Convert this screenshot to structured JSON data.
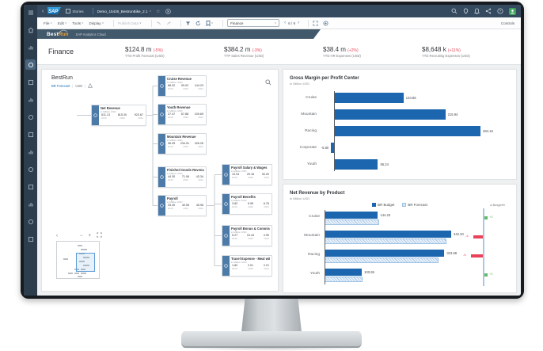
{
  "shell": {
    "brand": "SAP",
    "stories_label": "Stories",
    "doc_title": "Demo_15426_BestrunBike_2.1",
    "right_icons": [
      "search-icon",
      "location-icon",
      "notifications-icon",
      "share-icon",
      "help-icon",
      "account-avatar"
    ]
  },
  "sidebar": {
    "icons": [
      "menu",
      "home",
      "files",
      "story-active",
      "insights",
      "recent",
      "cloud",
      "users",
      "charts",
      "location",
      "link",
      "apps",
      "settings",
      "more"
    ]
  },
  "toolbar": {
    "menus": [
      "File",
      "Edit",
      "Tools",
      "Display"
    ],
    "publish_label": "Publish Data",
    "icon_names": [
      "undo",
      "redo",
      "filter",
      "refresh",
      "bookmark"
    ],
    "page_selector": "Finance",
    "page_nav": "6 / 9",
    "trailing_icon_names": [
      "fullscreen",
      "reset"
    ],
    "controls_label": "Controls"
  },
  "banner": {
    "brand_best": "Best",
    "brand_run": "Run",
    "product": "SAP Analytics Cloud"
  },
  "kpi": {
    "page_title": "Finance",
    "change_color": "#e8435a",
    "items": [
      {
        "value": "$124.8 m",
        "change": "(-5%)",
        "label": "YTD Profit Forecast (USD)"
      },
      {
        "value": "$384.2 m",
        "change": "(-3%)",
        "label": "YTP Sales Revenue (USD)"
      },
      {
        "value": "$38.4 m",
        "change": "(+2%)",
        "label": "YTD HR Expenses (USD)"
      },
      {
        "value": "$8,648 k",
        "change": "(+11%)",
        "label": "YTD Recruiting Expenses (USD)"
      }
    ]
  },
  "tree": {
    "title": "BestRun",
    "filter_link": "BR Forecast",
    "currency": "USD",
    "warning_icon": "warning-triangle-icon",
    "unit_label": "in Million USD",
    "years": [
      "2019",
      "2020",
      "2021"
    ],
    "node_bar_color": "#4c7aa9",
    "nodes": [
      {
        "title": "Net Revenue",
        "values": [
          "611.13",
          "815.30",
          "923.67"
        ]
      },
      {
        "title": "Cruise Revenue",
        "values": [
          "88.32",
          "99.02",
          "144.23"
        ]
      },
      {
        "title": "Youth Revenue",
        "values": [
          "27.47",
          "67.88",
          "100.69"
        ]
      },
      {
        "title": "Mountain Revenue",
        "values": [
          "96.99",
          "234.91",
          "326.26"
        ]
      },
      {
        "title": "Finished Goods Revenue",
        "values": [
          "44.30",
          "71.06",
          "43.34"
        ]
      },
      {
        "title": "Payroll",
        "values": [
          "25.30",
          "40.55",
          "45.96"
        ]
      },
      {
        "title": "Payroll Salary & Wages",
        "values": [
          "13.94",
          "29.18",
          "30.20"
        ]
      },
      {
        "title": "Payroll Benefits",
        "values": [
          "3.82",
          "5.95",
          "6.76"
        ]
      },
      {
        "title": "Payroll Bonus & Commissi...",
        "values": [
          "5.27",
          "10.44",
          "4.99"
        ]
      },
      {
        "title": "Travel Expense - Meal wit...",
        "values": [
          "1.82",
          "2.01",
          "2.21"
        ]
      }
    ],
    "minimap_controls": {
      "collapse": "‹",
      "zoom_out": "−",
      "zoom_in": "+",
      "fit_icon": "fit-screen-icon"
    }
  },
  "chart_data": [
    {
      "type": "bar",
      "orientation": "horizontal",
      "title": "Gross Margin per Profit Center",
      "subtitle": "in Million USD",
      "categories": [
        "Cruise",
        "Mountain",
        "Racing",
        "Corporate",
        "Youth"
      ],
      "values": [
        134.86,
        215.94,
        284.18,
        -5.8,
        85.24
      ],
      "value_labels": [
        "134.86",
        "215.94",
        "284.18",
        "-5.80",
        "85.24"
      ],
      "bar_color": "#1b66ae",
      "xlim": [
        -20,
        300
      ],
      "grid": false,
      "legend_position": "none"
    },
    {
      "type": "bar",
      "orientation": "horizontal",
      "title": "Net Revenue by Product",
      "subtitle": "in Million USD",
      "categories": [
        "Cruise",
        "Mountain",
        "Racing",
        "Youth"
      ],
      "series": [
        {
          "name": "BR Budget",
          "values": [
            144.23,
            342.2,
            323.68,
            100.69
          ],
          "labels": [
            "144.23",
            "342.20",
            "323.68",
            "100.69"
          ],
          "color": "#1b66ae"
        },
        {
          "name": "BR Forecast",
          "values": [
            147.1,
            328.5,
            307.5,
            102.7
          ],
          "color": "#d9e8f7",
          "note": "unlabeled hatched bars, lengths estimated"
        }
      ],
      "variance": {
        "header": "Δ Budget%",
        "values": [
          2,
          -4,
          -5,
          2
        ],
        "labels": [
          "+2",
          "-4",
          "-5",
          "+2"
        ],
        "pos_color": "#62ba66",
        "neg_color": "#e8435a"
      },
      "legend_position": "top",
      "xlim": [
        0,
        360
      ],
      "grid": false
    }
  ]
}
